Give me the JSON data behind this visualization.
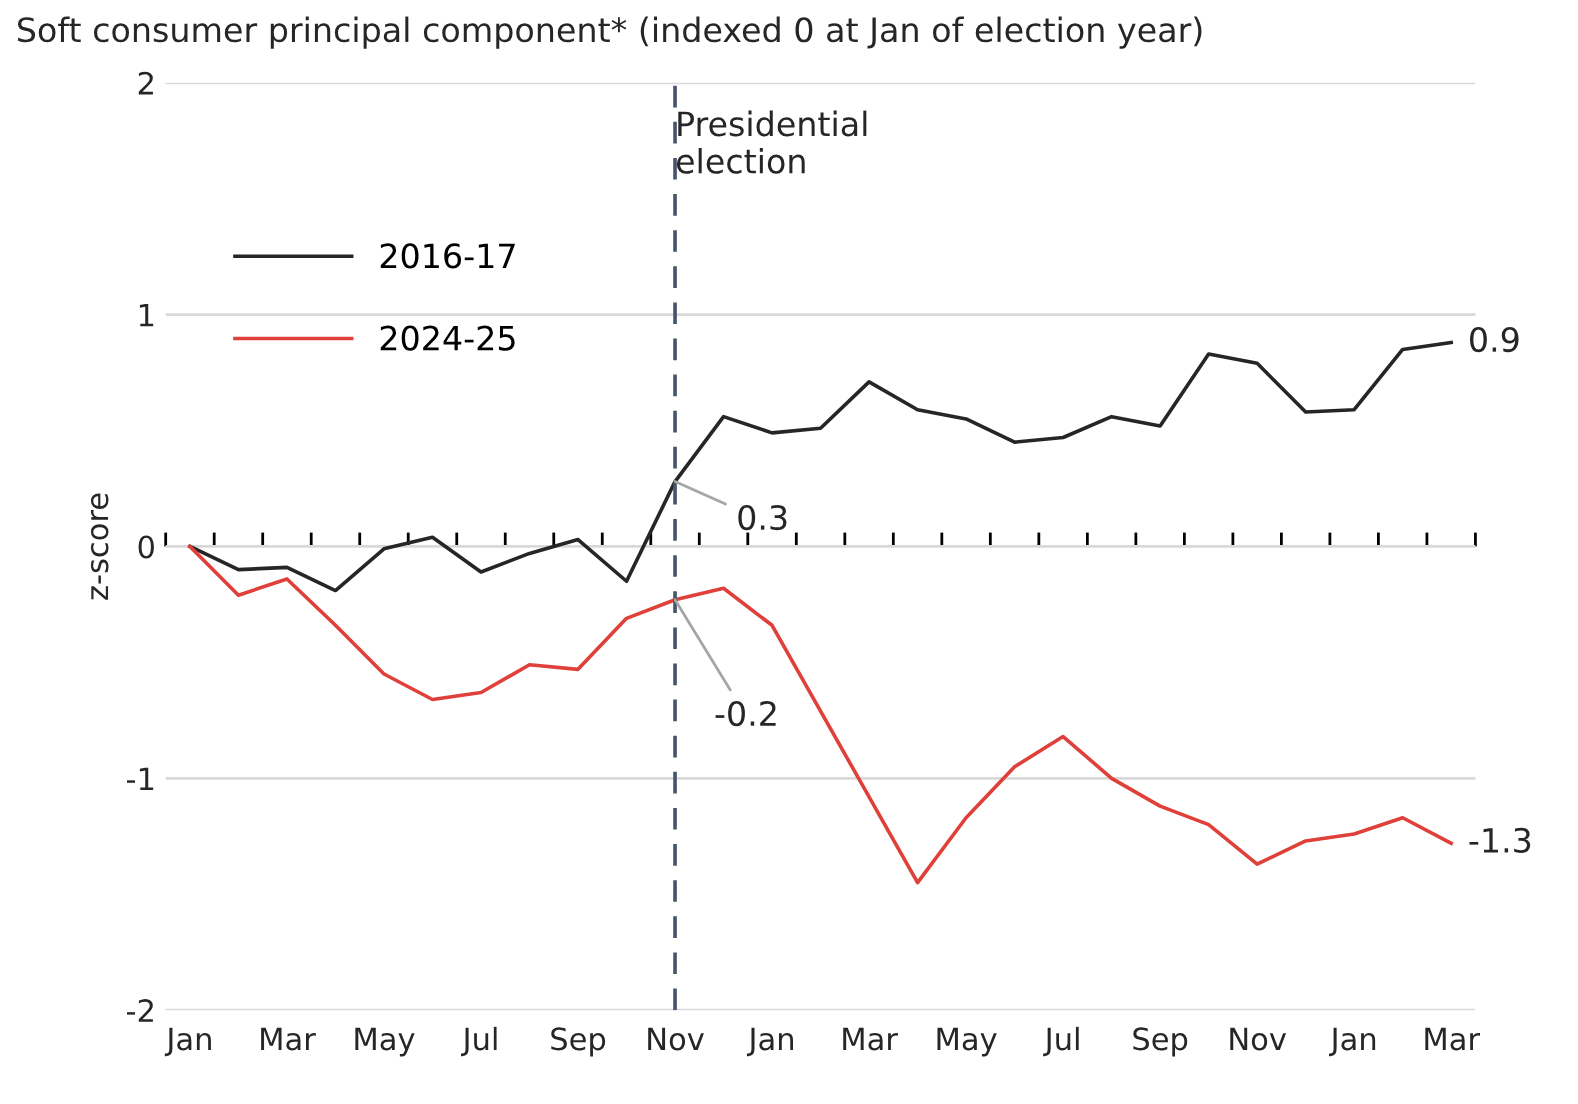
{
  "chart_data": {
    "type": "line",
    "title": "Soft consumer principal component* (indexed 0 at Jan of election year)",
    "ylabel": "z-score",
    "categories": [
      "Jan",
      null,
      "Mar",
      null,
      "May",
      null,
      "Jul",
      null,
      "Sep",
      null,
      "Nov",
      null,
      "Jan",
      null,
      "Mar",
      null,
      "May",
      null,
      "Jul",
      null,
      "Sep",
      null,
      "Nov",
      null,
      "Jan",
      null,
      "Mar"
    ],
    "ylim": [
      -2,
      2
    ],
    "yticks": [
      -2,
      -1,
      0,
      1,
      2
    ],
    "series": [
      {
        "name": "2016-17",
        "color": "#262626",
        "values": [
          0,
          -0.1,
          -0.09,
          -0.19,
          -0.01,
          0.04,
          -0.11,
          -0.03,
          0.03,
          -0.15,
          0.28,
          0.56,
          0.49,
          0.51,
          0.71,
          0.59,
          0.55,
          0.45,
          0.47,
          0.56,
          0.52,
          0.83,
          0.79,
          0.58,
          0.59,
          0.85,
          0.88
        ]
      },
      {
        "name": "2024-25",
        "color": "#e0403a",
        "values": [
          0,
          -0.21,
          -0.14,
          -0.34,
          -0.55,
          -0.66,
          -0.63,
          -0.51,
          -0.53,
          -0.31,
          -0.23,
          -0.18,
          -0.34,
          -0.71,
          -1.08,
          -1.45,
          -1.17,
          -0.95,
          -0.82,
          -1.0,
          -1.12,
          -1.2,
          -1.37,
          -1.27,
          -1.24,
          -1.17,
          -1.28
        ]
      }
    ],
    "ref_lines": [
      {
        "axis": "x",
        "value": "Nov",
        "label": "Presidential\nelection",
        "color": "#44546a",
        "line_style": "dashed"
      }
    ],
    "annotations": [
      "0.9",
      "-1.3",
      {
        "text": "0.3",
        "x": "Nov",
        "y": 0.28
      },
      {
        "text": "-0.2",
        "x": "Nov",
        "y": -0.23
      }
    ],
    "grid": "y",
    "legend": "top left",
    "marker": "none",
    "line_style": "solid"
  }
}
